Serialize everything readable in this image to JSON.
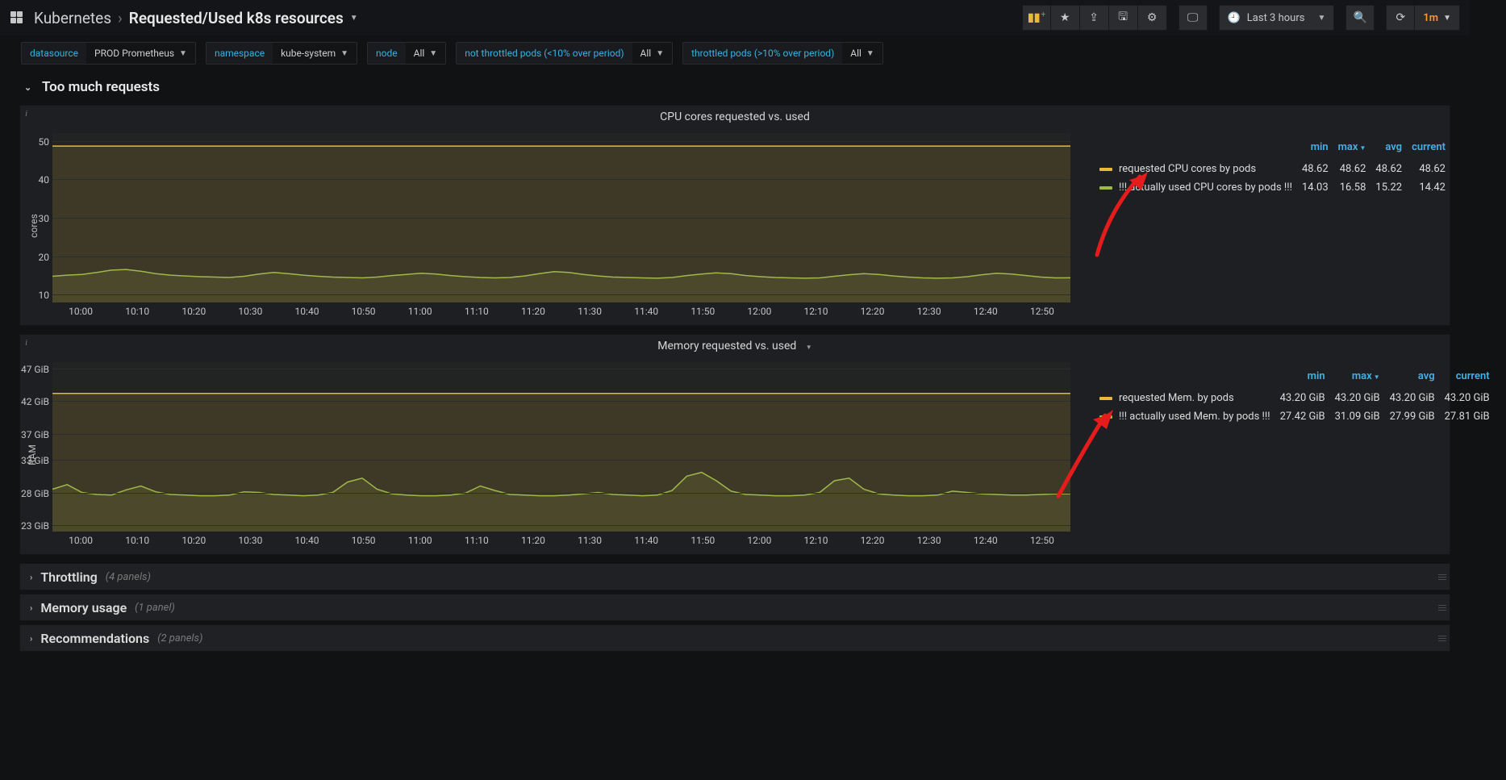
{
  "nav": {
    "folder": "Kubernetes",
    "title": "Requested/Used k8s resources",
    "time_label": "Last 3 hours",
    "refresh_interval": "1m"
  },
  "toolbar_icons": [
    "panel-add",
    "star",
    "share",
    "save",
    "settings",
    "tv"
  ],
  "variables": [
    {
      "label": "datasource",
      "value": "PROD Prometheus"
    },
    {
      "label": "namespace",
      "value": "kube-system"
    },
    {
      "label": "node",
      "value": "All"
    },
    {
      "label": "not throttled pods (<10% over period)",
      "value": "All"
    },
    {
      "label": "throttled pods (>10% over period)",
      "value": "All"
    }
  ],
  "row_open": {
    "title": "Too much requests"
  },
  "x_ticks": [
    "10:00",
    "10:10",
    "10:20",
    "10:30",
    "10:40",
    "10:50",
    "11:00",
    "11:10",
    "11:20",
    "11:30",
    "11:40",
    "11:50",
    "12:00",
    "12:10",
    "12:20",
    "12:30",
    "12:40",
    "12:50"
  ],
  "cpu_panel": {
    "title": "CPU cores requested vs. used",
    "ylabel": "cores",
    "ylim": [
      8,
      52
    ],
    "yticks": [
      10,
      20,
      30,
      40,
      50
    ],
    "colors": {
      "requested": "#eab839",
      "used": "#9bbb42",
      "grid": "#2c2d30",
      "bg_tint": "rgba(80,76,48,0.10)"
    },
    "series_requested": {
      "name": "requested CPU cores by pods",
      "min": "48.62",
      "max": "48.62",
      "avg": "48.62",
      "current": "48.62",
      "value": 48.62
    },
    "series_used": {
      "name": "!!! actually used CPU cores by pods !!!",
      "min": "14.03",
      "max": "16.58",
      "avg": "15.22",
      "current": "14.42",
      "points": [
        14.8,
        15.1,
        15.3,
        15.8,
        16.4,
        16.58,
        16.1,
        15.5,
        15.1,
        14.9,
        14.7,
        14.6,
        14.5,
        14.8,
        15.4,
        15.8,
        15.5,
        15.1,
        14.8,
        14.6,
        14.5,
        14.4,
        14.6,
        15.0,
        15.3,
        15.6,
        15.4,
        15.0,
        14.7,
        14.5,
        14.4,
        14.5,
        14.9,
        15.5,
        16.0,
        15.8,
        15.3,
        14.9,
        14.6,
        14.5,
        14.4,
        14.3,
        14.5,
        15.0,
        15.4,
        15.7,
        15.5,
        15.0,
        14.7,
        14.5,
        14.4,
        14.3,
        14.4,
        14.8,
        15.2,
        15.5,
        15.3,
        14.9,
        14.6,
        14.4,
        14.3,
        14.4,
        14.7,
        15.2,
        15.6,
        15.4,
        15.0,
        14.6,
        14.4,
        14.42
      ]
    },
    "legend_headers": [
      "min",
      "max",
      "avg",
      "current"
    ],
    "sort_col": "max"
  },
  "mem_panel": {
    "title": "Memory requested vs. used",
    "ylabel": "RAM",
    "ylim": [
      22,
      48
    ],
    "yticks": [
      23,
      28,
      33,
      37,
      42,
      47
    ],
    "ytick_labels": [
      "23 GiB",
      "28 GiB",
      "33 GiB",
      "37 GiB",
      "42 GiB",
      "47 GiB"
    ],
    "colors": {
      "requested": "#eab839",
      "used": "#9bbb42",
      "grid": "#2c2d30",
      "bg_tint": "rgba(80,76,48,0.10)"
    },
    "series_requested": {
      "name": "requested Mem. by pods",
      "min": "43.20 GiB",
      "max": "43.20 GiB",
      "avg": "43.20 GiB",
      "current": "43.20 GiB",
      "value": 43.2
    },
    "series_used": {
      "name": "!!! actually used Mem. by pods !!!",
      "min": "27.42 GiB",
      "max": "31.09 GiB",
      "avg": "27.99 GiB",
      "current": "27.81 GiB",
      "points": [
        28.5,
        29.2,
        28.0,
        27.7,
        27.6,
        28.4,
        29.0,
        28.1,
        27.7,
        27.6,
        27.5,
        27.5,
        27.6,
        28.1,
        28.0,
        27.7,
        27.6,
        27.5,
        27.6,
        28.0,
        29.6,
        30.2,
        28.5,
        27.8,
        27.6,
        27.5,
        27.5,
        27.6,
        27.9,
        29.0,
        28.3,
        27.7,
        27.6,
        27.5,
        27.5,
        27.6,
        27.8,
        28.0,
        27.7,
        27.6,
        27.5,
        27.6,
        28.3,
        30.5,
        31.09,
        29.8,
        28.2,
        27.7,
        27.6,
        27.5,
        27.5,
        27.6,
        28.0,
        29.8,
        30.2,
        28.5,
        27.8,
        27.6,
        27.5,
        27.5,
        27.6,
        28.2,
        28.0,
        27.8,
        27.7,
        27.6,
        27.6,
        27.7,
        27.8,
        27.81
      ]
    },
    "legend_headers": [
      "min",
      "max",
      "avg",
      "current"
    ],
    "sort_col": "max"
  },
  "collapsed_rows": [
    {
      "title": "Throttling",
      "count": "(4 panels)"
    },
    {
      "title": "Memory usage",
      "count": "(1 panel)"
    },
    {
      "title": "Recommendations",
      "count": "(2 panels)"
    }
  ]
}
